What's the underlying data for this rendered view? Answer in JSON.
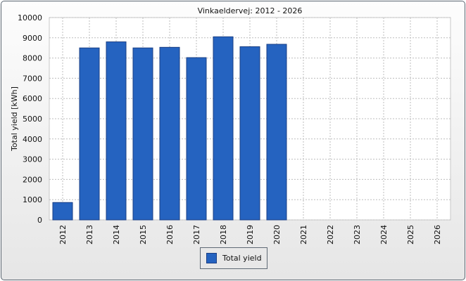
{
  "chart_data": {
    "type": "bar",
    "title": "Vinkaeldervej: 2012 - 2026",
    "xlabel": "",
    "ylabel": "Total yield [kWh]",
    "ylim": [
      0,
      10000
    ],
    "yticks": [
      0,
      1000,
      2000,
      3000,
      4000,
      5000,
      6000,
      7000,
      8000,
      9000,
      10000
    ],
    "categories": [
      "2012",
      "2013",
      "2014",
      "2015",
      "2016",
      "2017",
      "2018",
      "2019",
      "2020",
      "2021",
      "2022",
      "2023",
      "2024",
      "2025",
      "2026"
    ],
    "series": [
      {
        "name": "Total yield",
        "color": "#2563c0",
        "values": [
          860,
          8500,
          8800,
          8500,
          8530,
          8020,
          9050,
          8560,
          8680,
          null,
          null,
          null,
          null,
          null,
          null
        ]
      }
    ],
    "grid": true,
    "legend": "bottom"
  }
}
